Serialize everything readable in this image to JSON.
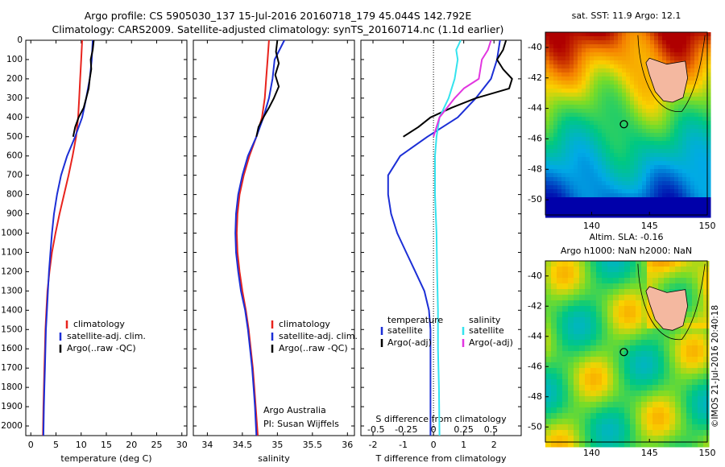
{
  "header": {
    "line1": "Argo profile: CS 5905030_137 15-Jul-2016 20160718_179 45.044S 142.792E",
    "line2": "Climatology: CARS2009. Satellite-adjusted climatology: synTS_20160714.nc (1.1d earlier)"
  },
  "credits": {
    "group": "Argo Australia",
    "pi": "PI: Susan Wijffels",
    "side_stamp": "©IMOS 21-Jul-2016 20:40:18"
  },
  "colors": {
    "climatology": "#e8231d",
    "satellite": "#1c2fd6",
    "argo": "#000000",
    "satellite_salinity": "#34e3ee",
    "argo_adj_salinity": "#e236e0",
    "land": "#f4b8a0"
  },
  "legend": {
    "climatology": "climatology",
    "satellite_adj": "satellite-adj. clim.",
    "argo_raw": "Argo(..raw -QC)",
    "temperature_head": "temperature",
    "salinity_head": "salinity",
    "satellite": "satellite",
    "argo_adj": "Argo(-adj)"
  },
  "chart_data": [
    {
      "type": "line",
      "panel": "temperature",
      "xlabel": "temperature (deg C)",
      "ylabel": "",
      "xlim": [
        -1,
        31
      ],
      "ylim": [
        2050,
        0
      ],
      "xticks": [
        0,
        5,
        10,
        15,
        20,
        25,
        30
      ],
      "yticks": [
        0,
        100,
        200,
        300,
        400,
        500,
        600,
        700,
        800,
        900,
        1000,
        1100,
        1200,
        1300,
        1400,
        1500,
        1600,
        1700,
        1800,
        1900,
        2000
      ],
      "series": [
        {
          "name": "climatology",
          "points": [
            [
              10.2,
              0
            ],
            [
              10.0,
              100
            ],
            [
              9.8,
              200
            ],
            [
              9.6,
              300
            ],
            [
              9.4,
              400
            ],
            [
              9.0,
              500
            ],
            [
              8.3,
              600
            ],
            [
              7.5,
              700
            ],
            [
              6.6,
              800
            ],
            [
              5.7,
              900
            ],
            [
              4.9,
              1000
            ],
            [
              4.2,
              1100
            ],
            [
              3.7,
              1200
            ],
            [
              3.3,
              1300
            ],
            [
              3.1,
              1400
            ],
            [
              2.9,
              1500
            ],
            [
              2.8,
              1600
            ],
            [
              2.7,
              1700
            ],
            [
              2.6,
              1800
            ],
            [
              2.5,
              1900
            ],
            [
              2.4,
              2050
            ]
          ]
        },
        {
          "name": "satellite-adj. clim.",
          "points": [
            [
              12.3,
              0
            ],
            [
              12.1,
              100
            ],
            [
              11.7,
              200
            ],
            [
              11.0,
              300
            ],
            [
              10.2,
              400
            ],
            [
              8.8,
              500
            ],
            [
              7.2,
              600
            ],
            [
              6.0,
              700
            ],
            [
              5.2,
              800
            ],
            [
              4.6,
              900
            ],
            [
              4.2,
              1000
            ],
            [
              3.9,
              1100
            ],
            [
              3.6,
              1200
            ],
            [
              3.4,
              1300
            ],
            [
              3.2,
              1400
            ],
            [
              3.0,
              1500
            ],
            [
              2.9,
              1600
            ],
            [
              2.8,
              1700
            ],
            [
              2.7,
              1800
            ],
            [
              2.6,
              1900
            ],
            [
              2.5,
              2050
            ]
          ]
        },
        {
          "name": "Argo(..raw -QC)",
          "points": [
            [
              12.5,
              0
            ],
            [
              12.3,
              50
            ],
            [
              11.9,
              100
            ],
            [
              12.0,
              150
            ],
            [
              11.7,
              200
            ],
            [
              11.5,
              250
            ],
            [
              11.0,
              300
            ],
            [
              10.5,
              350
            ],
            [
              9.5,
              400
            ],
            [
              8.8,
              450
            ],
            [
              8.4,
              500
            ]
          ]
        }
      ]
    },
    {
      "type": "line",
      "panel": "salinity",
      "xlabel": "salinity",
      "ylabel": "",
      "xlim": [
        33.8,
        36.1
      ],
      "ylim": [
        2050,
        0
      ],
      "xticks": [
        34,
        34.5,
        35,
        35.5,
        36
      ],
      "series": [
        {
          "name": "climatology",
          "points": [
            [
              34.88,
              0
            ],
            [
              34.86,
              100
            ],
            [
              34.84,
              200
            ],
            [
              34.82,
              300
            ],
            [
              34.78,
              400
            ],
            [
              34.7,
              500
            ],
            [
              34.6,
              600
            ],
            [
              34.52,
              700
            ],
            [
              34.46,
              800
            ],
            [
              34.43,
              900
            ],
            [
              34.42,
              1000
            ],
            [
              34.43,
              1100
            ],
            [
              34.46,
              1200
            ],
            [
              34.5,
              1300
            ],
            [
              34.55,
              1400
            ],
            [
              34.59,
              1500
            ],
            [
              34.62,
              1600
            ],
            [
              34.65,
              1700
            ],
            [
              34.67,
              1800
            ],
            [
              34.69,
              1900
            ],
            [
              34.72,
              2050
            ]
          ]
        },
        {
          "name": "satellite-adj. clim.",
          "points": [
            [
              35.1,
              0
            ],
            [
              34.96,
              100
            ],
            [
              34.93,
              200
            ],
            [
              34.88,
              300
            ],
            [
              34.8,
              400
            ],
            [
              34.7,
              500
            ],
            [
              34.58,
              600
            ],
            [
              34.5,
              700
            ],
            [
              34.44,
              800
            ],
            [
              34.41,
              900
            ],
            [
              34.4,
              1000
            ],
            [
              34.41,
              1100
            ],
            [
              34.44,
              1200
            ],
            [
              34.48,
              1300
            ],
            [
              34.54,
              1400
            ],
            [
              34.58,
              1500
            ],
            [
              34.61,
              1600
            ],
            [
              34.64,
              1700
            ],
            [
              34.66,
              1800
            ],
            [
              34.68,
              1900
            ],
            [
              34.7,
              2050
            ]
          ]
        },
        {
          "name": "Argo(..raw -QC)",
          "points": [
            [
              35.0,
              0
            ],
            [
              34.98,
              60
            ],
            [
              35.02,
              120
            ],
            [
              34.97,
              180
            ],
            [
              35.02,
              240
            ],
            [
              34.95,
              300
            ],
            [
              34.88,
              350
            ],
            [
              34.8,
              400
            ],
            [
              34.73,
              450
            ],
            [
              34.7,
              500
            ]
          ]
        }
      ]
    },
    {
      "type": "line",
      "panel": "difference",
      "xlabel": "T difference from climatology",
      "xlabel_top": "S difference from climatology",
      "xlim": [
        -2.4,
        2.9
      ],
      "ylim": [
        2050,
        0
      ],
      "xticks": [
        -2,
        -1,
        0,
        1,
        2
      ],
      "s_ticks": [
        {
          "label": "-0.5",
          "t": -1.9
        },
        {
          "label": "-0.25",
          "t": -0.9
        },
        {
          "label": "0",
          "t": 0
        },
        {
          "label": "0.25",
          "t": 1.0
        },
        {
          "label": "0.5",
          "t": 1.9
        }
      ],
      "series": [
        {
          "name": "temperature satellite",
          "points": [
            [
              2.2,
              0
            ],
            [
              2.1,
              100
            ],
            [
              1.9,
              200
            ],
            [
              1.4,
              300
            ],
            [
              0.8,
              400
            ],
            [
              -0.2,
              500
            ],
            [
              -1.1,
              600
            ],
            [
              -1.5,
              700
            ],
            [
              -1.5,
              800
            ],
            [
              -1.4,
              900
            ],
            [
              -1.2,
              1000
            ],
            [
              -0.9,
              1100
            ],
            [
              -0.6,
              1200
            ],
            [
              -0.3,
              1300
            ],
            [
              -0.15,
              1400
            ],
            [
              -0.1,
              1500
            ],
            [
              -0.1,
              1600
            ],
            [
              -0.1,
              1700
            ],
            [
              -0.1,
              1800
            ],
            [
              -0.1,
              1900
            ],
            [
              -0.1,
              2050
            ]
          ]
        },
        {
          "name": "temperature Argo(-adj)",
          "points": [
            [
              2.4,
              0
            ],
            [
              2.3,
              50
            ],
            [
              2.1,
              100
            ],
            [
              2.3,
              150
            ],
            [
              2.6,
              200
            ],
            [
              2.5,
              250
            ],
            [
              1.4,
              300
            ],
            [
              0.6,
              350
            ],
            [
              -0.1,
              400
            ],
            [
              -0.5,
              450
            ],
            [
              -1.0,
              500
            ]
          ]
        },
        {
          "name": "salinity satellite",
          "points": [
            [
              0.9,
              0
            ],
            [
              0.75,
              50
            ],
            [
              0.8,
              100
            ],
            [
              0.7,
              200
            ],
            [
              0.5,
              300
            ],
            [
              0.2,
              400
            ],
            [
              0.1,
              500
            ],
            [
              0.05,
              600
            ],
            [
              0.05,
              800
            ],
            [
              0.1,
              1000
            ],
            [
              0.12,
              1200
            ],
            [
              0.15,
              1400
            ],
            [
              0.15,
              1600
            ],
            [
              0.18,
              1800
            ],
            [
              0.2,
              2050
            ]
          ]
        },
        {
          "name": "salinity Argo(-adj)",
          "points": [
            [
              1.9,
              0
            ],
            [
              1.8,
              50
            ],
            [
              1.6,
              100
            ],
            [
              1.55,
              150
            ],
            [
              1.5,
              200
            ],
            [
              1.0,
              250
            ],
            [
              0.7,
              300
            ],
            [
              0.2,
              400
            ],
            [
              0.0,
              500
            ]
          ]
        }
      ]
    },
    {
      "type": "heatmap",
      "panel": "sst-map",
      "title": "sat. SST: 11.9 Argo: 12.1",
      "xlim": [
        136,
        150
      ],
      "ylim": [
        -51,
        -39
      ],
      "xticks": [
        140,
        145,
        150
      ],
      "yticks": [
        -40,
        -42,
        -44,
        -46,
        -48,
        -50
      ],
      "marker": {
        "lon": 142.79,
        "lat": -45.04
      }
    },
    {
      "type": "heatmap",
      "panel": "sla-map",
      "title": "Altim. SLA: -0.16",
      "subtitle": "Argo h1000: NaN h2000: NaN",
      "xlim": [
        136,
        150
      ],
      "ylim": [
        -51,
        -39
      ],
      "xticks": [
        140,
        145,
        150
      ],
      "yticks": [
        -40,
        -42,
        -44,
        -46,
        -48,
        -50
      ],
      "marker": {
        "lon": 142.79,
        "lat": -45.04
      }
    }
  ]
}
